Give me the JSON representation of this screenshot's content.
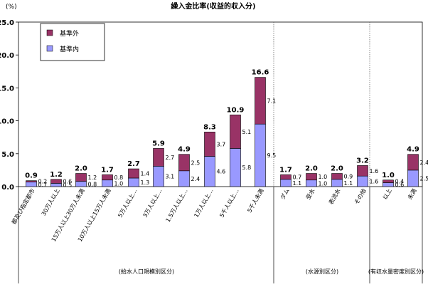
{
  "chart_data": {
    "type": "bar",
    "stacked": true,
    "title": "繰入金比率(収益的収入分)",
    "ylabel": "(%)",
    "ylim": [
      0,
      25
    ],
    "yticks": [
      "0.0",
      "5.0",
      "10.0",
      "15.0",
      "20.0",
      "25.0"
    ],
    "grid": false,
    "legend_position": "top-left",
    "categories": [
      "都及び指定都市",
      "30万人以上",
      "15万人以上30万人未満",
      "10万人以上15万人未満",
      "5万人以上…",
      "3万人以上…",
      "1.5万人以上…",
      "1万人以上…",
      "5千人以上…",
      "5千人未満",
      "ダム",
      "受水",
      "表流水",
      "その他",
      "以上",
      "未満"
    ],
    "series": [
      {
        "name": "基準内",
        "color": "#9999ff",
        "values": [
          0.7,
          0.5,
          0.8,
          1.0,
          1.3,
          3.1,
          2.4,
          4.6,
          5.8,
          9.5,
          1.1,
          1.0,
          1.1,
          1.6,
          0.6,
          2.5
        ],
        "labels": [
          "0.7",
          "0.5",
          "0.8",
          "1.0",
          "1.3",
          "3.1",
          "2.4",
          "4.6",
          "5.8",
          "9.5",
          "1.1",
          "1.0",
          "1.1",
          "1.6",
          "0.6",
          "2.5"
        ]
      },
      {
        "name": "基準外",
        "color": "#993366",
        "values": [
          0.2,
          0.6,
          1.2,
          0.8,
          1.4,
          2.7,
          2.5,
          3.7,
          5.1,
          7.1,
          0.7,
          1.0,
          0.9,
          1.6,
          0.4,
          2.4
        ],
        "labels": [
          "0.2",
          "0.6",
          "1.2",
          "0.8",
          "1.4",
          "2.7",
          "2.5",
          "3.7",
          "5.1",
          "7.1",
          "0.7",
          "1.0",
          "0.9",
          "1.6",
          "0.4",
          "2.4"
        ]
      }
    ],
    "totals": [
      "0.9",
      "1.2",
      "2.0",
      "1.7",
      "2.7",
      "5.9",
      "4.9",
      "8.3",
      "10.9",
      "16.6",
      "1.7",
      "2.0",
      "2.0",
      "3.2",
      "1.0",
      "4.9"
    ],
    "groups": [
      "(給水人口規模別区分)",
      "(水源別区分)",
      "(有収水量密度別区分)"
    ]
  }
}
